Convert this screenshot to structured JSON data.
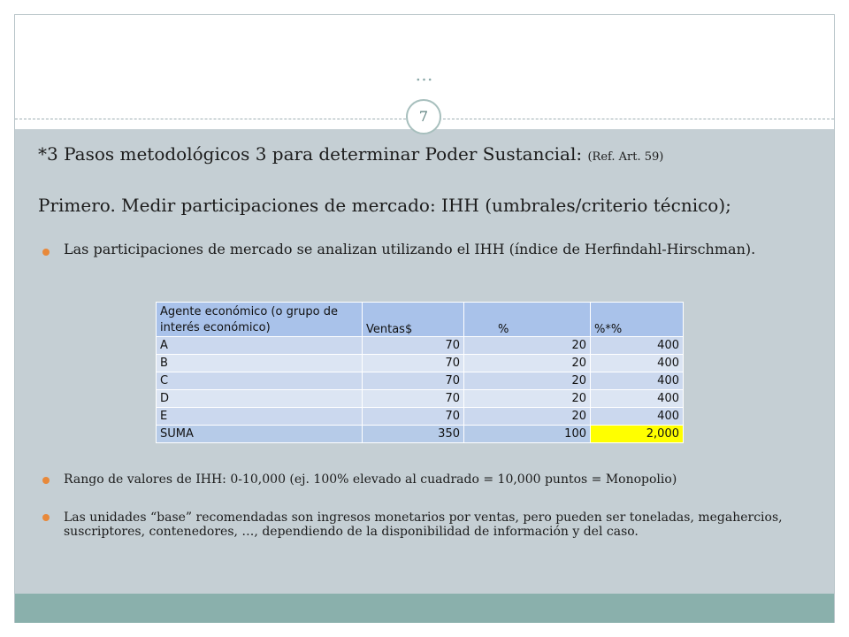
{
  "slide": {
    "ellipsis": "…",
    "page_number": "7",
    "heading1": "*3 Pasos metodológicos 3 para determinar Poder Sustancial:",
    "heading1_ref": "(Ref. Art. 59)",
    "heading2": "Primero. Medir participaciones de mercado: IHH (umbrales/criterio técnico);",
    "bullets": [
      "Las participaciones de mercado se analizan utilizando el IHH (índice de Herfindahl-Hirschman).",
      "Rango de valores de IHH: 0-10,000 (ej. 100% elevado al cuadrado = 10,000 puntos = Monopolio)",
      "Las unidades “base” recomendadas son ingresos monetarios por ventas, pero pueden ser toneladas, megahercios, suscriptores, contenedores, …, dependiendo de la disponibilidad  de información y del caso."
    ]
  },
  "table": {
    "headers": [
      "Agente económico (o grupo de interés económico)",
      "Ventas$",
      "%",
      "%*%"
    ],
    "rows": [
      [
        "A",
        "70",
        "20",
        "400"
      ],
      [
        "B",
        "70",
        "20",
        "400"
      ],
      [
        "C",
        "70",
        "20",
        "400"
      ],
      [
        "D",
        "70",
        "20",
        "400"
      ],
      [
        "E",
        "70",
        "20",
        "400"
      ]
    ],
    "total": [
      "SUMA",
      "350",
      "100",
      "2,000"
    ],
    "highlight_color": "#ffff00"
  }
}
